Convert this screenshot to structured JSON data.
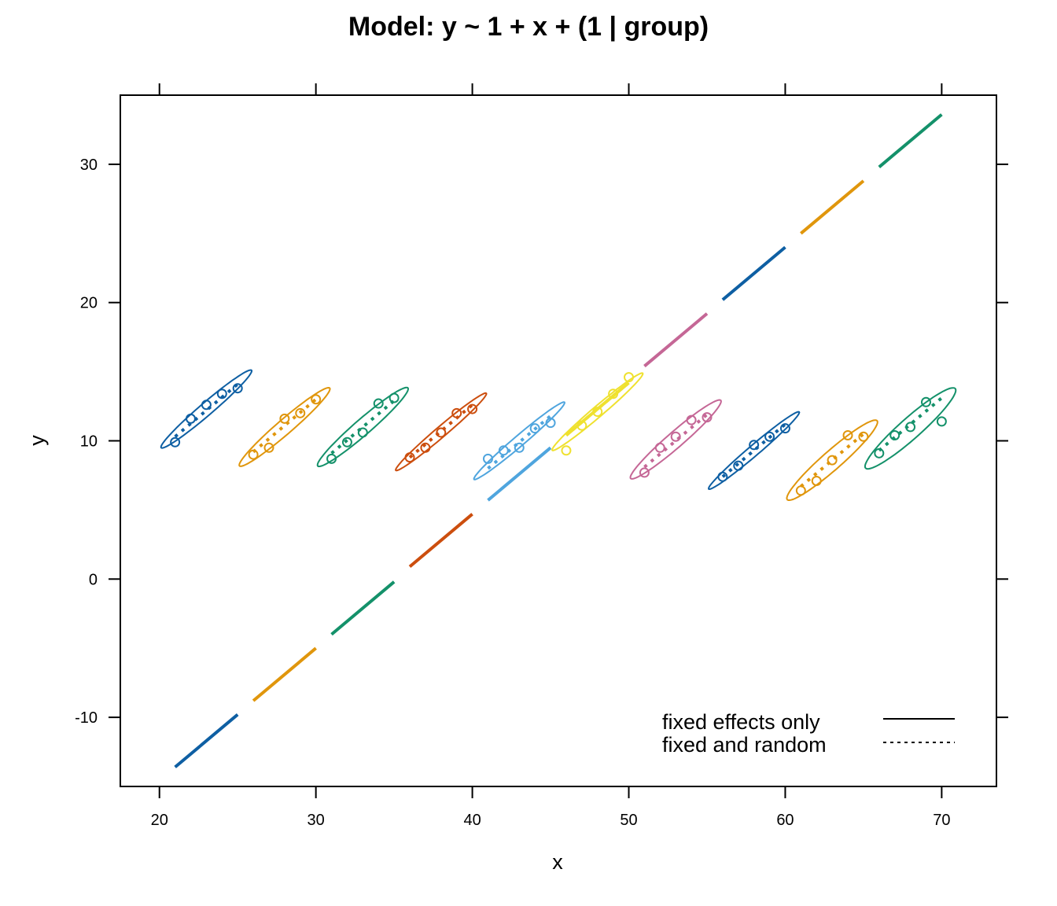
{
  "chart_data": {
    "type": "line",
    "title": "Model: y ~ 1 + x + (1 | group)",
    "xlabel": "x",
    "ylabel": "y",
    "xlim": [
      17.5,
      73.5
    ],
    "ylim": [
      -15,
      35
    ],
    "x_ticks": [
      20,
      30,
      40,
      50,
      60,
      70
    ],
    "y_ticks": [
      -10,
      0,
      10,
      20,
      30
    ],
    "x_tick_labels": [
      "20",
      "30",
      "40",
      "50",
      "60",
      "70"
    ],
    "y_tick_labels": [
      "-10",
      "0",
      "10",
      "20",
      "30"
    ],
    "grid": false,
    "legend": {
      "position": "bottom-right",
      "entries": [
        {
          "label": "fixed effects only",
          "line_style": "solid"
        },
        {
          "label": "fixed and random",
          "line_style": "dotted"
        }
      ]
    },
    "series": [
      {
        "color": "#0E5FA3",
        "points": [
          [
            21,
            9.9
          ],
          [
            22,
            11.6
          ],
          [
            23,
            12.6
          ],
          [
            24,
            13.4
          ],
          [
            25,
            13.8
          ]
        ],
        "fixed_line": [
          [
            21,
            -13.6
          ],
          [
            25,
            -9.8
          ]
        ],
        "random_line": [
          [
            21,
            10.3
          ],
          [
            25,
            14.1
          ]
        ],
        "ellipse": {
          "center": [
            23,
            12.3
          ],
          "x_radius": 2.9,
          "y_semi": 0.6
        }
      },
      {
        "color": "#E0960C",
        "points": [
          [
            26,
            9.0
          ],
          [
            27,
            9.5
          ],
          [
            28,
            11.6
          ],
          [
            29,
            12.0
          ],
          [
            30,
            13.0
          ]
        ],
        "fixed_line": [
          [
            26,
            -8.8
          ],
          [
            30,
            -5.0
          ]
        ],
        "random_line": [
          [
            26,
            9.2
          ],
          [
            30,
            13.0
          ]
        ],
        "ellipse": {
          "center": [
            28,
            11.0
          ],
          "x_radius": 2.9,
          "y_semi": 0.7
        }
      },
      {
        "color": "#14916A",
        "points": [
          [
            31,
            8.7
          ],
          [
            32,
            9.9
          ],
          [
            33,
            10.6
          ],
          [
            34,
            12.7
          ],
          [
            35,
            13.1
          ]
        ],
        "fixed_line": [
          [
            31,
            -4.0
          ],
          [
            35,
            -0.2
          ]
        ],
        "random_line": [
          [
            31,
            9.1
          ],
          [
            35,
            12.9
          ]
        ],
        "ellipse": {
          "center": [
            33,
            11.0
          ],
          "x_radius": 2.9,
          "y_semi": 0.75
        }
      },
      {
        "color": "#CC4E0E",
        "points": [
          [
            36,
            8.8
          ],
          [
            37,
            9.5
          ],
          [
            38,
            10.6
          ],
          [
            39,
            12.0
          ],
          [
            40,
            12.3
          ]
        ],
        "fixed_line": [
          [
            36,
            0.9
          ],
          [
            40,
            4.7
          ]
        ],
        "random_line": [
          [
            36,
            8.8
          ],
          [
            40,
            12.6
          ]
        ],
        "ellipse": {
          "center": [
            38,
            10.65
          ],
          "x_radius": 2.9,
          "y_semi": 0.5
        }
      },
      {
        "color": "#4FA5DE",
        "points": [
          [
            41,
            8.7
          ],
          [
            42,
            9.3
          ],
          [
            43,
            9.5
          ],
          [
            44,
            10.9
          ],
          [
            45,
            11.3
          ]
        ],
        "fixed_line": [
          [
            41,
            5.7
          ],
          [
            45,
            9.5
          ]
        ],
        "random_line": [
          [
            41,
            8.0
          ],
          [
            45,
            11.8
          ]
        ],
        "ellipse": {
          "center": [
            43,
            10.0
          ],
          "x_radius": 2.9,
          "y_semi": 0.5
        }
      },
      {
        "color": "#EFE12F",
        "points": [
          [
            46,
            9.3
          ],
          [
            47,
            11.1
          ],
          [
            48,
            12.1
          ],
          [
            49,
            13.4
          ],
          [
            50,
            14.6
          ]
        ],
        "fixed_line": [
          [
            46,
            10.4
          ],
          [
            50,
            14.2
          ]
        ],
        "random_line": [
          [
            46,
            10.4
          ],
          [
            50,
            14.2
          ]
        ],
        "ellipse": {
          "center": [
            48,
            12.1
          ],
          "x_radius": 2.9,
          "y_semi": 0.5
        }
      },
      {
        "color": "#C56796",
        "points": [
          [
            51,
            7.7
          ],
          [
            52,
            9.5
          ],
          [
            53,
            10.3
          ],
          [
            54,
            11.5
          ],
          [
            55,
            11.7
          ]
        ],
        "fixed_line": [
          [
            51,
            15.4
          ],
          [
            55,
            19.2
          ]
        ],
        "random_line": [
          [
            51,
            8.1
          ],
          [
            55,
            11.9
          ]
        ],
        "ellipse": {
          "center": [
            53,
            10.1
          ],
          "x_radius": 2.9,
          "y_semi": 0.75
        }
      },
      {
        "color": "#0E5FA3",
        "points": [
          [
            56,
            7.4
          ],
          [
            57,
            8.2
          ],
          [
            58,
            9.7
          ],
          [
            59,
            10.3
          ],
          [
            60,
            10.9
          ]
        ],
        "fixed_line": [
          [
            56,
            20.2
          ],
          [
            60,
            24.0
          ]
        ],
        "random_line": [
          [
            56,
            7.4
          ],
          [
            60,
            11.2
          ]
        ],
        "ellipse": {
          "center": [
            58,
            9.3
          ],
          "x_radius": 2.9,
          "y_semi": 0.5
        }
      },
      {
        "color": "#E0960C",
        "points": [
          [
            61,
            6.4
          ],
          [
            62,
            7.1
          ],
          [
            63,
            8.6
          ],
          [
            64,
            10.4
          ],
          [
            65,
            10.3
          ]
        ],
        "fixed_line": [
          [
            61,
            25.0
          ],
          [
            65,
            28.8
          ]
        ],
        "random_line": [
          [
            61,
            6.7
          ],
          [
            65,
            10.5
          ]
        ],
        "ellipse": {
          "center": [
            63,
            8.6
          ],
          "x_radius": 2.9,
          "y_semi": 0.9
        }
      },
      {
        "color": "#14916A",
        "points": [
          [
            66,
            9.1
          ],
          [
            67,
            10.4
          ],
          [
            68,
            11.0
          ],
          [
            69,
            12.8
          ],
          [
            70,
            11.4
          ]
        ],
        "fixed_line": [
          [
            66,
            29.8
          ],
          [
            70,
            33.6
          ]
        ],
        "random_line": [
          [
            66,
            9.3
          ],
          [
            70,
            13.1
          ]
        ],
        "ellipse": {
          "center": [
            68,
            10.9
          ],
          "x_radius": 2.9,
          "y_semi": 1.0
        }
      }
    ]
  }
}
